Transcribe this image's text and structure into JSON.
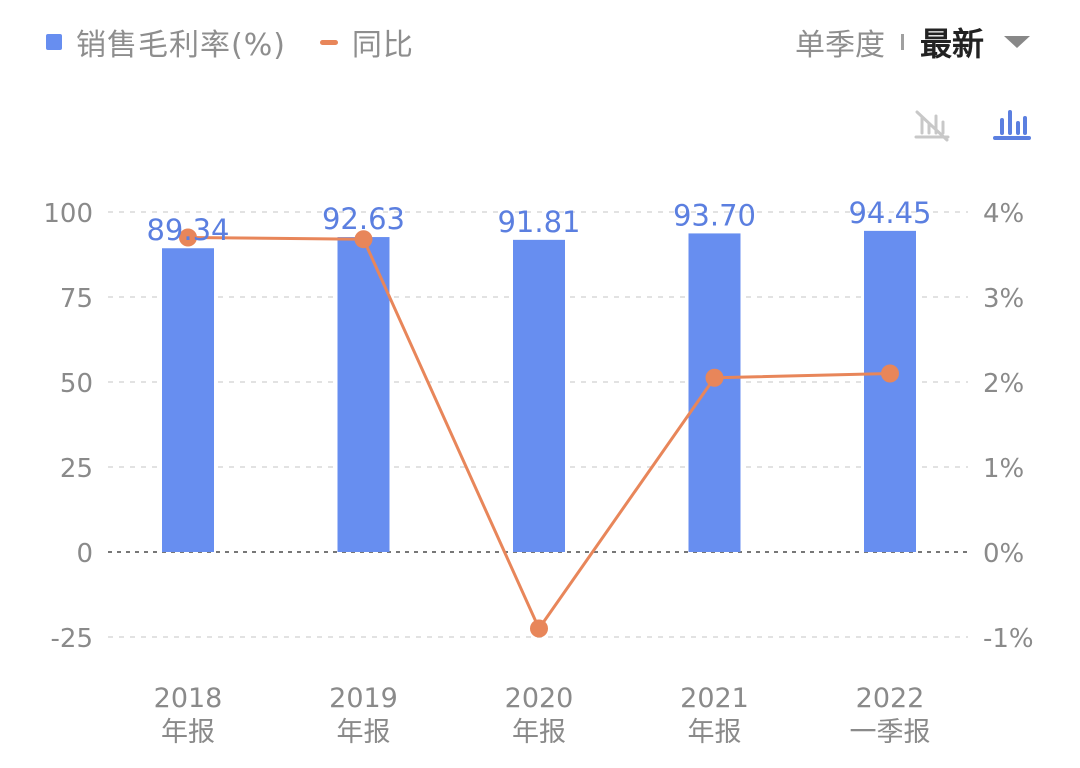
{
  "legend": {
    "bar_label": "销售毛利率(%)",
    "line_label": "同比"
  },
  "controls": {
    "mode": "单季度",
    "period": "最新"
  },
  "icons": {
    "hide_line": "line-off-icon",
    "bar_chart": "bar-chart-icon",
    "dropdown": "caret-down-icon"
  },
  "colors": {
    "bar": "#678ef0",
    "line": "#e8865a",
    "bar_label": "#5b7fe0",
    "axis_text": "#8a8a8a",
    "grid": "#e2e2e2",
    "zero_line": "#777777",
    "icon_active": "#5b7fe0",
    "icon_inactive": "#c8c8c8"
  },
  "chart_data": {
    "type": "bar+line",
    "categories": [
      [
        "2018",
        "年报"
      ],
      [
        "2019",
        "年报"
      ],
      [
        "2020",
        "年报"
      ],
      [
        "2021",
        "年报"
      ],
      [
        "2022",
        "一季报"
      ]
    ],
    "series": [
      {
        "name": "销售毛利率(%)",
        "type": "bar",
        "axis": "left",
        "values": [
          89.34,
          92.63,
          91.81,
          93.7,
          94.45
        ],
        "labels": [
          "89.34",
          "92.63",
          "91.81",
          "93.70",
          "94.45"
        ]
      },
      {
        "name": "同比",
        "type": "line",
        "axis": "right",
        "values": [
          3.7,
          3.68,
          -0.9,
          2.05,
          2.1
        ]
      }
    ],
    "left_axis": {
      "min": -25,
      "max": 100,
      "ticks": [
        100,
        75,
        50,
        25,
        0,
        -25
      ],
      "tick_labels": [
        "100",
        "75",
        "50",
        "25",
        "0",
        "-25"
      ]
    },
    "right_axis": {
      "min": -1,
      "max": 4,
      "ticks": [
        4,
        3,
        2,
        1,
        0,
        -1
      ],
      "tick_labels": [
        "4%",
        "3%",
        "2%",
        "1%",
        "0%",
        "-1%"
      ]
    },
    "grid": true,
    "legend_position": "top-left"
  }
}
